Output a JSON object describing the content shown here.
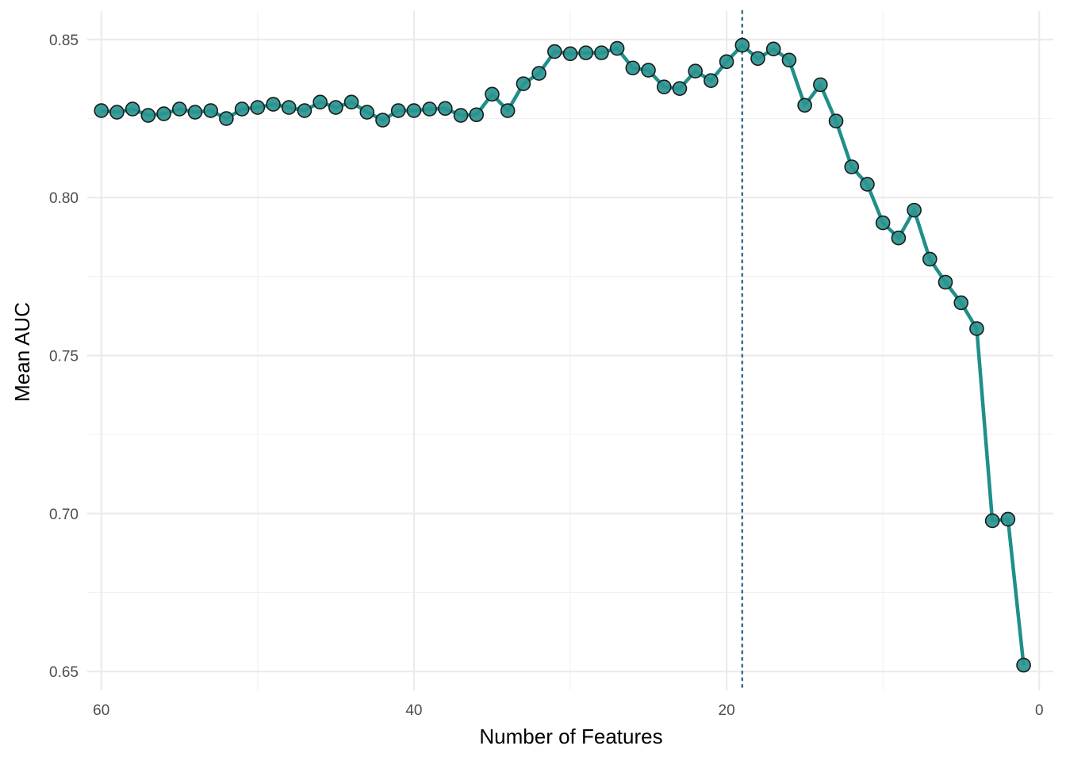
{
  "chart_data": {
    "type": "line",
    "title": "",
    "xlabel": "Number of Features",
    "ylabel": "Mean AUC",
    "x_reversed": true,
    "xlim": [
      60.9,
      -0.9
    ],
    "ylim": [
      0.644,
      0.859
    ],
    "x_ticks": [
      60,
      40,
      20,
      0
    ],
    "x_tick_labels": [
      "60",
      "40",
      "20",
      "0"
    ],
    "y_ticks": [
      0.65,
      0.7,
      0.75,
      0.8,
      0.85
    ],
    "y_tick_labels": [
      "0.65",
      "0.70",
      "0.75",
      "0.80",
      "0.85"
    ],
    "grid": true,
    "line_color": "#1f8f8a",
    "point_fill": "#2a9590",
    "point_stroke": "#1a1a1a",
    "reference_line": {
      "x": 19,
      "color": "#3b6f91",
      "style": "dotted"
    },
    "x": [
      60,
      59,
      58,
      57,
      56,
      55,
      54,
      53,
      52,
      51,
      50,
      49,
      48,
      47,
      46,
      45,
      44,
      43,
      42,
      41,
      40,
      39,
      38,
      37,
      36,
      35,
      34,
      33,
      32,
      31,
      30,
      29,
      28,
      27,
      26,
      25,
      24,
      23,
      22,
      21,
      20,
      19,
      18,
      17,
      16,
      15,
      14,
      13,
      12,
      11,
      10,
      9,
      8,
      7,
      6,
      5,
      4,
      3,
      2,
      1
    ],
    "values": [
      0.8275,
      0.827,
      0.828,
      0.826,
      0.8265,
      0.828,
      0.827,
      0.8275,
      0.825,
      0.828,
      0.8285,
      0.8295,
      0.8285,
      0.8275,
      0.8302,
      0.8285,
      0.8302,
      0.827,
      0.8245,
      0.8275,
      0.8275,
      0.828,
      0.8282,
      0.826,
      0.8262,
      0.8327,
      0.8275,
      0.836,
      0.8393,
      0.8462,
      0.8455,
      0.8458,
      0.8458,
      0.8472,
      0.841,
      0.8403,
      0.835,
      0.8345,
      0.84,
      0.837,
      0.843,
      0.8482,
      0.844,
      0.847,
      0.8435,
      0.8292,
      0.8357,
      0.8242,
      0.8097,
      0.8042,
      0.792,
      0.7872,
      0.796,
      0.7805,
      0.7732,
      0.7667,
      0.7585,
      0.6977,
      0.6982,
      0.652
    ]
  }
}
